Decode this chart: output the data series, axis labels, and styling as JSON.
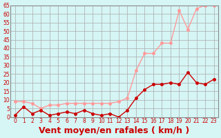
{
  "xlabel": "Vent moyen/en rafales ( km/h )",
  "x_labels": [
    "0",
    "1",
    "2",
    "3",
    "4",
    "5",
    "6",
    "7",
    "8",
    "9",
    "10",
    "11",
    "12",
    "13",
    "14",
    "15",
    "16",
    "17",
    "18",
    "19",
    "20",
    "21",
    "22",
    "23"
  ],
  "x_values": [
    0,
    1,
    2,
    3,
    4,
    5,
    6,
    7,
    8,
    9,
    10,
    11,
    12,
    13,
    14,
    15,
    16,
    17,
    18,
    19,
    20,
    21,
    22,
    23
  ],
  "moyen": [
    1,
    6,
    2,
    4,
    1,
    2,
    3,
    2,
    4,
    2,
    1,
    2,
    0,
    4,
    11,
    16,
    19,
    19,
    20,
    19,
    26,
    20,
    19,
    22
  ],
  "rafales": [
    9,
    9,
    8,
    5,
    7,
    7,
    8,
    8,
    8,
    8,
    8,
    8,
    9,
    11,
    27,
    37,
    37,
    43,
    43,
    62,
    51,
    63,
    65,
    65
  ],
  "color_moyen": "#cc0000",
  "color_rafales": "#ff9999",
  "bg_color": "#d6f5f5",
  "grid_color": "#aaaaaa",
  "ylim": [
    0,
    65
  ],
  "yticks": [
    0,
    5,
    10,
    15,
    20,
    25,
    30,
    35,
    40,
    45,
    50,
    55,
    60,
    65
  ],
  "tick_color": "#cc0000",
  "label_color": "#cc0000",
  "xlabel_fontsize": 9
}
